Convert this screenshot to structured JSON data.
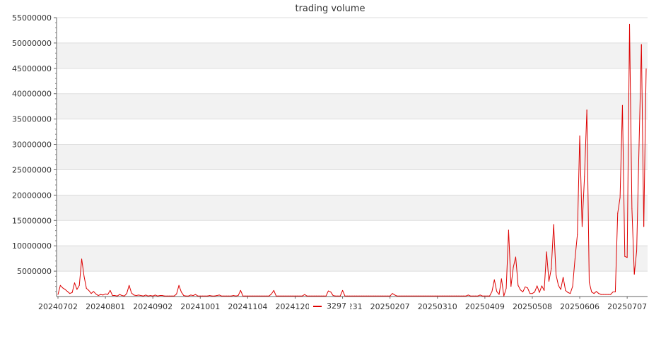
{
  "chart_data": {
    "type": "line",
    "title": "trading volume",
    "xlabel": "",
    "ylabel": "",
    "ylim": [
      0,
      55000000
    ],
    "y_ticks": [
      5000000,
      10000000,
      15000000,
      20000000,
      25000000,
      30000000,
      35000000,
      40000000,
      45000000,
      50000000,
      55000000
    ],
    "y_tick_labels": [
      "5000000",
      "10000000",
      "15000000",
      "20000000",
      "25000000",
      "30000000",
      "35000000",
      "40000000",
      "45000000",
      "50000000",
      "55000000"
    ],
    "x_tick_labels": [
      "20240702",
      "20240801",
      "20240902",
      "20241001",
      "20241104",
      "20241203",
      "20241231",
      "20250207",
      "20250310",
      "20250409",
      "20250508",
      "20250606",
      "20250707"
    ],
    "x_tick_indices": [
      0,
      20,
      40,
      60,
      80,
      100,
      120,
      140,
      160,
      180,
      200,
      220,
      240
    ],
    "grid": true,
    "legend_position": "bottom",
    "color": "#dd0000",
    "series": [
      {
        "name": "3297",
        "values": [
          400000,
          2200000,
          1700000,
          1400000,
          1000000,
          600000,
          800000,
          2700000,
          1400000,
          2200000,
          7400000,
          4000000,
          1600000,
          1200000,
          600000,
          1000000,
          500000,
          200000,
          400000,
          300000,
          500000,
          400000,
          1200000,
          200000,
          200000,
          100000,
          400000,
          200000,
          100000,
          600000,
          2200000,
          700000,
          300000,
          200000,
          300000,
          200000,
          100000,
          300000,
          100000,
          200000,
          100000,
          300000,
          100000,
          200000,
          200000,
          100000,
          100000,
          100000,
          100000,
          100000,
          500000,
          2200000,
          900000,
          200000,
          100000,
          100000,
          300000,
          200000,
          400000,
          100000,
          100000,
          100000,
          100000,
          100000,
          200000,
          100000,
          100000,
          200000,
          300000,
          100000,
          100000,
          100000,
          100000,
          100000,
          200000,
          100000,
          200000,
          1200000,
          100000,
          100000,
          100000,
          100000,
          100000,
          100000,
          100000,
          100000,
          100000,
          100000,
          100000,
          100000,
          500000,
          1200000,
          100000,
          100000,
          100000,
          100000,
          100000,
          100000,
          100000,
          100000,
          100000,
          100000,
          100000,
          100000,
          400000,
          100000,
          100000,
          100000,
          100000,
          100000,
          100000,
          100000,
          100000,
          100000,
          1100000,
          900000,
          200000,
          100000,
          100000,
          100000,
          1200000,
          100000,
          100000,
          100000,
          100000,
          100000,
          100000,
          100000,
          100000,
          100000,
          100000,
          100000,
          100000,
          100000,
          100000,
          100000,
          100000,
          100000,
          100000,
          100000,
          100000,
          600000,
          300000,
          100000,
          100000,
          100000,
          100000,
          100000,
          100000,
          100000,
          100000,
          100000,
          100000,
          100000,
          100000,
          100000,
          100000,
          100000,
          100000,
          100000,
          100000,
          100000,
          100000,
          100000,
          100000,
          100000,
          100000,
          100000,
          100000,
          100000,
          100000,
          100000,
          100000,
          300000,
          100000,
          100000,
          100000,
          100000,
          300000,
          100000,
          100000,
          100000,
          100000,
          1000000,
          3300000,
          1000000,
          400000,
          3500000,
          100000,
          1600000,
          13100000,
          2000000,
          5800000,
          7800000,
          2200000,
          1300000,
          900000,
          1900000,
          1700000,
          600000,
          600000,
          900000,
          2100000,
          800000,
          2100000,
          1200000,
          8800000,
          3000000,
          5500000,
          14200000,
          4300000,
          2200000,
          1400000,
          3800000,
          1200000,
          800000,
          600000,
          2000000,
          7400000,
          12200000,
          31700000,
          13800000,
          23600000,
          36800000,
          2800000,
          900000,
          600000,
          1000000,
          600000,
          400000,
          400000,
          400000,
          400000,
          400000,
          900000,
          900000,
          16400000,
          19500000,
          37700000,
          7900000,
          7700000,
          53700000,
          17300000,
          4400000,
          9000000,
          29700000,
          49700000,
          13800000,
          44900000
        ]
      }
    ]
  }
}
